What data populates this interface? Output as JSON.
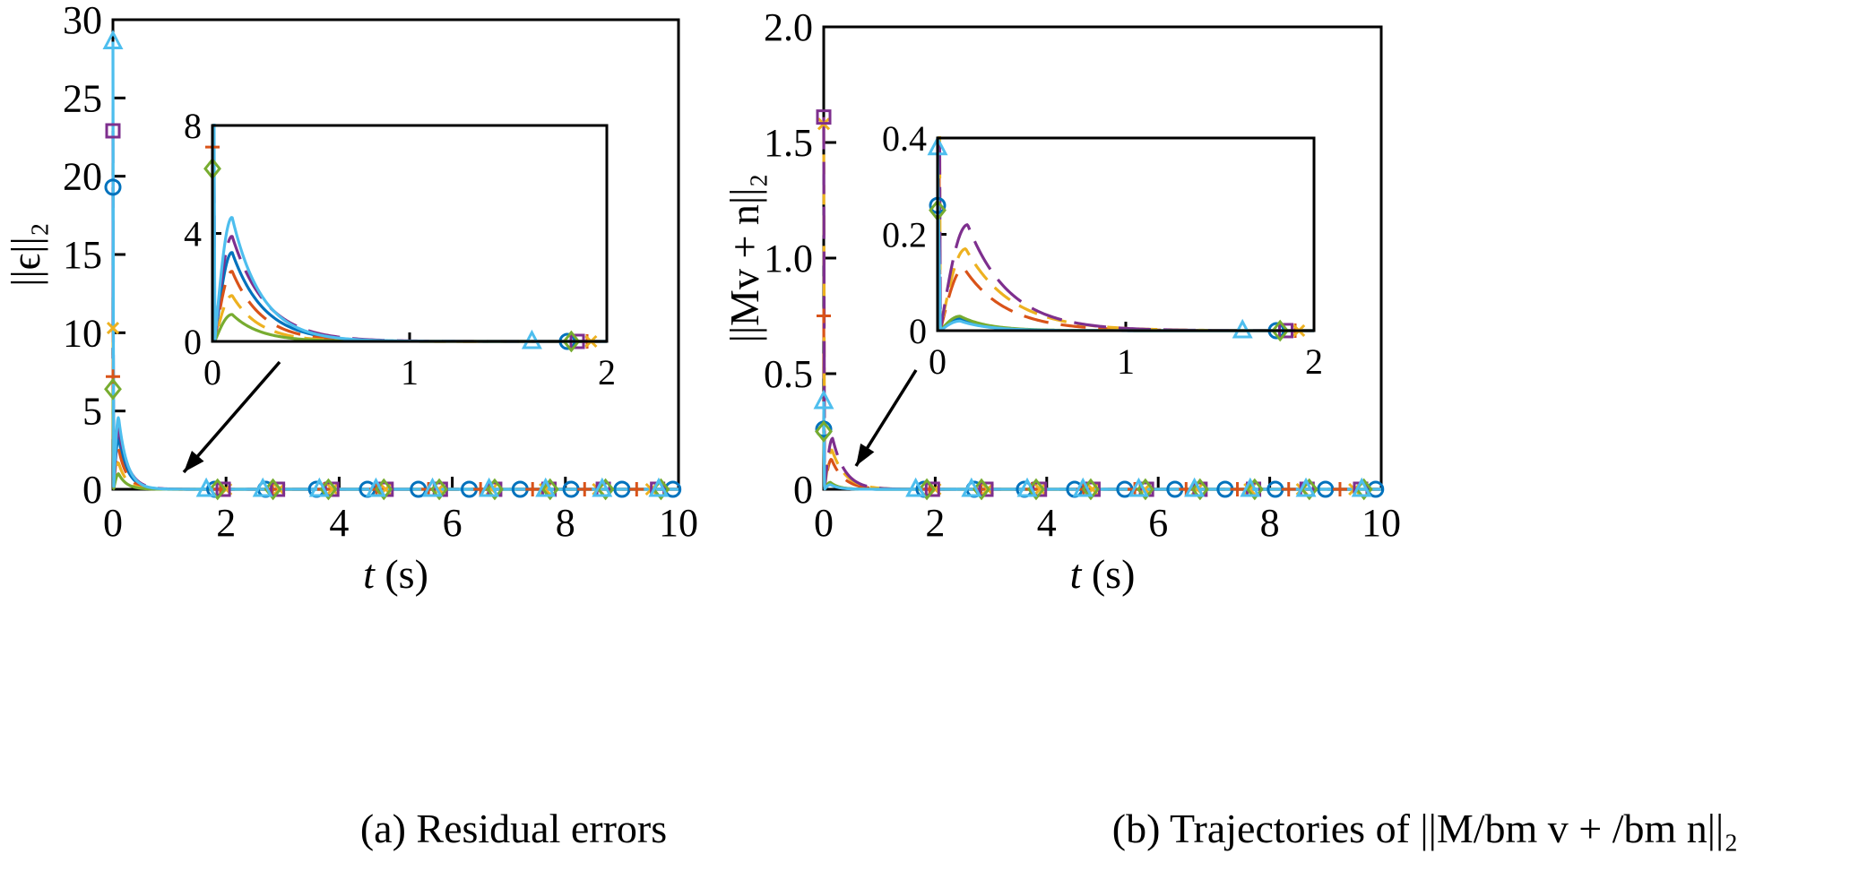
{
  "series_styles": [
    {
      "color": "#0072BD",
      "dash": "",
      "marker": "circle"
    },
    {
      "color": "#D95319",
      "dash": "28,14",
      "marker": "plus"
    },
    {
      "color": "#EDB120",
      "dash": "22,12",
      "marker": "x"
    },
    {
      "color": "#7E2F8E",
      "dash": "36,14",
      "marker": "square"
    },
    {
      "color": "#77AC30",
      "dash": "",
      "marker": "diamond"
    },
    {
      "color": "#4DBEEE",
      "dash": "",
      "marker": "triangle"
    }
  ],
  "chart_data": [
    {
      "type": "line",
      "caption": "(a) Residual errors",
      "xlabel_italic": "t",
      "xlabel_rest": " (s)",
      "ylabel": "||ϵ||₂",
      "xlim": [
        0,
        10
      ],
      "ylim": [
        0,
        30
      ],
      "xticks": [
        "0",
        "2",
        "4",
        "6",
        "8",
        "10"
      ],
      "yticks": [
        "0",
        "5",
        "10",
        "15",
        "20",
        "25",
        "30"
      ],
      "grid": false,
      "legend": "none",
      "series": [
        {
          "y0": 19.3,
          "peak": 3.3,
          "tpeak": 0.1,
          "decay": 0.16,
          "fall": 0.012
        },
        {
          "y0": 7.2,
          "peak": 2.6,
          "tpeak": 0.1,
          "decay": 0.15,
          "fall": 0.012
        },
        {
          "y0": 10.3,
          "peak": 1.7,
          "tpeak": 0.1,
          "decay": 0.14,
          "fall": 0.012
        },
        {
          "y0": 22.9,
          "peak": 3.9,
          "tpeak": 0.1,
          "decay": 0.17,
          "fall": 0.012
        },
        {
          "y0": 6.4,
          "peak": 1.0,
          "tpeak": 0.1,
          "decay": 0.14,
          "fall": 0.012
        },
        {
          "y0": 28.6,
          "peak": 4.6,
          "tpeak": 0.1,
          "decay": 0.15,
          "fall": 0.012
        }
      ],
      "inset": {
        "xlim": [
          0,
          2
        ],
        "ylim": [
          0,
          8
        ],
        "xticks": [
          "0",
          "1",
          "2"
        ],
        "yticks": [
          "0",
          "4",
          "8"
        ]
      }
    },
    {
      "type": "line",
      "caption": "(b) Trajectories of ||M/bm v + /bm n||₂",
      "xlabel_italic": "t",
      "xlabel_rest": " (s)",
      "ylabel": "||Mv + n||₂",
      "xlim": [
        0,
        10
      ],
      "ylim": [
        0,
        2.0
      ],
      "xticks": [
        "0",
        "2",
        "4",
        "6",
        "8",
        "10"
      ],
      "yticks": [
        "0",
        "0.5",
        "1.0",
        "1.5",
        "2.0"
      ],
      "grid": false,
      "legend": "none",
      "series": [
        {
          "y0": 0.26,
          "peak": 0.025,
          "tpeak": 0.12,
          "decay": 0.15,
          "fall": 0.015
        },
        {
          "y0": 0.75,
          "peak": 0.13,
          "tpeak": 0.14,
          "decay": 0.22,
          "fall": 0.015
        },
        {
          "y0": 1.58,
          "peak": 0.17,
          "tpeak": 0.15,
          "decay": 0.24,
          "fall": 0.015
        },
        {
          "y0": 1.61,
          "peak": 0.22,
          "tpeak": 0.16,
          "decay": 0.22,
          "fall": 0.015
        },
        {
          "y0": 0.25,
          "peak": 0.03,
          "tpeak": 0.12,
          "decay": 0.15,
          "fall": 0.015
        },
        {
          "y0": 0.38,
          "peak": 0.02,
          "tpeak": 0.12,
          "decay": 0.15,
          "fall": 0.015
        }
      ],
      "inset": {
        "xlim": [
          0,
          2
        ],
        "ylim": [
          0,
          0.4
        ],
        "xticks": [
          "0",
          "1",
          "2"
        ],
        "yticks": [
          "0",
          "0.2",
          "0.4"
        ]
      }
    }
  ]
}
